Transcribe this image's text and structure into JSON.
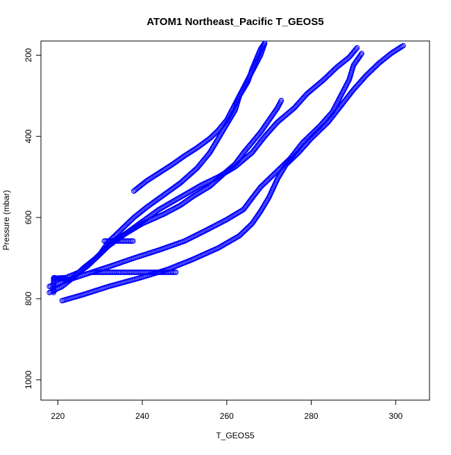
{
  "chart_data": {
    "type": "scatter",
    "title": "ATOM1 Northeast_Pacific T_GEOS5",
    "xlabel": "T_GEOS5",
    "ylabel": "Pressure (mbar)",
    "xlim": [
      216,
      308
    ],
    "ylim": [
      1050,
      165
    ],
    "y_reversed": true,
    "x_ticks": [
      220,
      240,
      260,
      280,
      300
    ],
    "y_ticks": [
      200,
      400,
      600,
      800,
      1000
    ],
    "marker": "open-circle",
    "color": "#0000ff",
    "grid": false,
    "series": [
      {
        "points": [
          [
            218,
            785
          ],
          [
            221,
            770
          ],
          [
            224,
            745
          ],
          [
            226,
            725
          ],
          [
            229,
            700
          ],
          [
            232,
            670
          ],
          [
            236,
            640
          ],
          [
            240,
            610
          ],
          [
            244,
            580
          ],
          [
            249,
            550
          ],
          [
            254,
            520
          ],
          [
            258,
            500
          ],
          [
            262,
            475
          ],
          [
            266,
            440
          ],
          [
            269,
            400
          ],
          [
            272,
            365
          ],
          [
            276,
            330
          ],
          [
            279,
            295
          ],
          [
            283,
            260
          ],
          [
            286,
            230
          ],
          [
            289,
            205
          ],
          [
            291,
            180
          ]
        ]
      },
      {
        "points": [
          [
            221,
            805
          ],
          [
            226,
            790
          ],
          [
            232,
            770
          ],
          [
            239,
            750
          ],
          [
            246,
            728
          ],
          [
            252,
            703
          ],
          [
            258,
            675
          ],
          [
            263,
            645
          ],
          [
            266,
            615
          ],
          [
            268,
            585
          ],
          [
            270,
            550
          ],
          [
            272,
            505
          ],
          [
            274,
            470
          ],
          [
            277,
            440
          ],
          [
            280,
            405
          ],
          [
            284,
            365
          ],
          [
            287,
            325
          ],
          [
            290,
            285
          ],
          [
            293,
            250
          ],
          [
            296,
            220
          ],
          [
            299,
            195
          ],
          [
            302,
            175
          ]
        ]
      },
      {
        "points": [
          [
            218,
            770
          ],
          [
            223,
            752
          ],
          [
            228,
            735
          ],
          [
            233,
            718
          ],
          [
            238,
            700
          ],
          [
            244,
            680
          ],
          [
            250,
            658
          ],
          [
            255,
            632
          ],
          [
            260,
            605
          ],
          [
            264,
            580
          ],
          [
            266,
            552
          ],
          [
            268,
            525
          ],
          [
            271,
            495
          ],
          [
            275,
            455
          ],
          [
            278,
            415
          ],
          [
            282,
            375
          ],
          [
            285,
            340
          ],
          [
            287,
            300
          ],
          [
            289,
            260
          ],
          [
            290,
            225
          ],
          [
            292,
            195
          ]
        ]
      },
      {
        "points": [
          [
            219,
            750
          ],
          [
            222,
            748
          ],
          [
            225,
            735
          ],
          [
            227,
            720
          ],
          [
            230,
            690
          ],
          [
            233,
            660
          ],
          [
            236,
            640
          ],
          [
            240,
            615
          ],
          [
            245,
            592
          ],
          [
            249,
            570
          ],
          [
            252,
            548
          ],
          [
            256,
            523
          ],
          [
            259,
            495
          ],
          [
            262,
            468
          ],
          [
            264,
            440
          ],
          [
            266,
            415
          ],
          [
            268,
            390
          ],
          [
            270,
            360
          ],
          [
            272,
            330
          ],
          [
            273,
            310
          ]
        ]
      },
      {
        "points": [
          [
            230,
            690
          ],
          [
            232,
            660
          ],
          [
            235,
            630
          ],
          [
            238,
            600
          ],
          [
            241,
            575
          ],
          [
            245,
            545
          ],
          [
            249,
            515
          ],
          [
            253,
            478
          ],
          [
            256,
            440
          ],
          [
            258,
            405
          ],
          [
            260,
            370
          ],
          [
            262,
            335
          ],
          [
            263,
            300
          ],
          [
            265,
            265
          ],
          [
            266,
            235
          ],
          [
            267,
            210
          ],
          [
            268,
            185
          ],
          [
            269,
            170
          ]
        ]
      },
      {
        "points": [
          [
            238,
            535
          ],
          [
            241,
            510
          ],
          [
            244,
            490
          ],
          [
            247,
            470
          ],
          [
            250,
            448
          ],
          [
            253,
            428
          ],
          [
            256,
            405
          ],
          [
            258,
            385
          ],
          [
            260,
            360
          ],
          [
            262,
            320
          ],
          [
            264,
            280
          ],
          [
            266,
            240
          ],
          [
            268,
            200
          ],
          [
            269,
            170
          ]
        ]
      },
      {
        "points": [
          [
            228,
            735
          ],
          [
            230,
            735
          ],
          [
            232,
            735
          ],
          [
            234,
            735
          ],
          [
            236,
            735
          ],
          [
            238,
            735
          ],
          [
            240,
            735
          ],
          [
            242,
            735
          ],
          [
            244,
            735
          ],
          [
            246,
            735
          ],
          [
            248,
            735
          ]
        ]
      },
      {
        "points": [
          [
            231,
            658
          ],
          [
            232,
            658
          ],
          [
            233,
            658
          ],
          [
            234,
            658
          ],
          [
            235,
            658
          ],
          [
            236,
            658
          ],
          [
            237,
            658
          ],
          [
            238,
            658
          ]
        ]
      },
      {
        "points": [
          [
            219,
            785
          ],
          [
            219,
            775
          ],
          [
            219,
            765
          ],
          [
            219,
            755
          ],
          [
            219,
            748
          ],
          [
            220,
            750
          ],
          [
            222,
            752
          ]
        ]
      }
    ]
  }
}
